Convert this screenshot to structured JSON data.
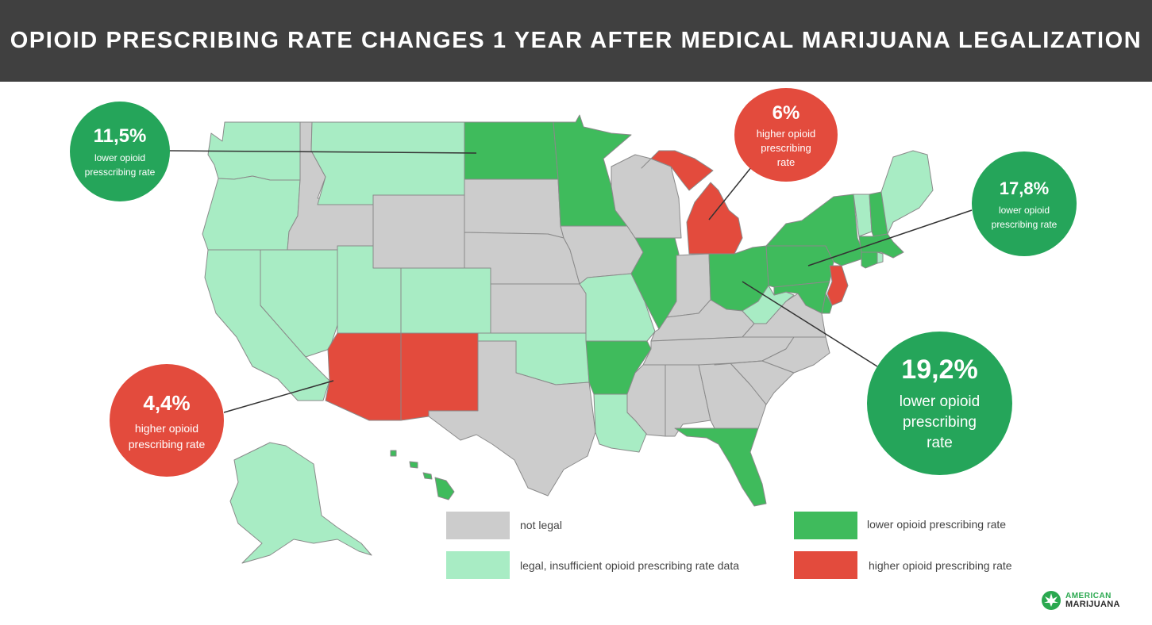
{
  "title": "OPIOID PRESCRIBING RATE CHANGES 1 YEAR AFTER MEDICAL MARIJUANA LEGALIZATION",
  "colors": {
    "not_legal": "#cccccc",
    "legal_insufficient": "#a8ecc4",
    "lower": "#3fbb5c",
    "higher": "#e34b3d",
    "callout_green": "#25a55a",
    "callout_red": "#e34b3d",
    "header_bg": "#404040"
  },
  "callouts": {
    "washington": {
      "value": "11,5%",
      "line1": "lower opioid",
      "line2": "presscribing rate"
    },
    "michigan": {
      "value": "6%",
      "line1": "higher opioid",
      "line2": "prescribing",
      "line3": "rate"
    },
    "northeast": {
      "value": "17,8%",
      "line1": "lower opioid",
      "line2": "prescribing rate"
    },
    "arizona": {
      "value": "4,4%",
      "line1": "higher opioid",
      "line2": "prescribing rate"
    },
    "ohio": {
      "value": "19,2%",
      "line1": "lower opioid",
      "line2": "prescribing",
      "line3": "rate"
    }
  },
  "legend": {
    "not_legal": "not legal",
    "legal_insufficient": "legal, insufficient opioid prescribing rate data",
    "lower": "lower opioid prescribing rate",
    "higher": "higher opioid prescribing rate"
  },
  "logo": {
    "line1": "AMERICAN",
    "line2": "MARIJUANA",
    "icon": "cannabis-leaf-icon"
  },
  "states": {
    "WA": "legal_insufficient",
    "OR": "legal_insufficient",
    "CA": "legal_insufficient",
    "NV": "legal_insufficient",
    "ID": "not_legal",
    "MT": "legal_insufficient",
    "WY": "not_legal",
    "UT": "legal_insufficient",
    "CO": "legal_insufficient",
    "AZ": "higher",
    "NM": "higher",
    "ND": "lower",
    "SD": "not_legal",
    "NE": "not_legal",
    "KS": "not_legal",
    "OK": "legal_insufficient",
    "TX": "not_legal",
    "MN": "lower",
    "IA": "not_legal",
    "MO": "legal_insufficient",
    "AR": "lower",
    "LA": "legal_insufficient",
    "WI": "not_legal",
    "IL": "lower",
    "MI": "higher",
    "IN": "not_legal",
    "OH": "lower",
    "KY": "not_legal",
    "TN": "not_legal",
    "MS": "not_legal",
    "AL": "not_legal",
    "GA": "not_legal",
    "FL": "lower",
    "SC": "not_legal",
    "NC": "not_legal",
    "VA": "not_legal",
    "WV": "legal_insufficient",
    "PA": "lower",
    "NY": "lower",
    "NJ": "higher",
    "DE": "lower",
    "MD": "lower",
    "VT": "legal_insufficient",
    "NH": "lower",
    "ME": "legal_insufficient",
    "MA": "lower",
    "CT": "lower",
    "RI": "legal_insufficient",
    "AK": "legal_insufficient",
    "HI": "lower"
  }
}
